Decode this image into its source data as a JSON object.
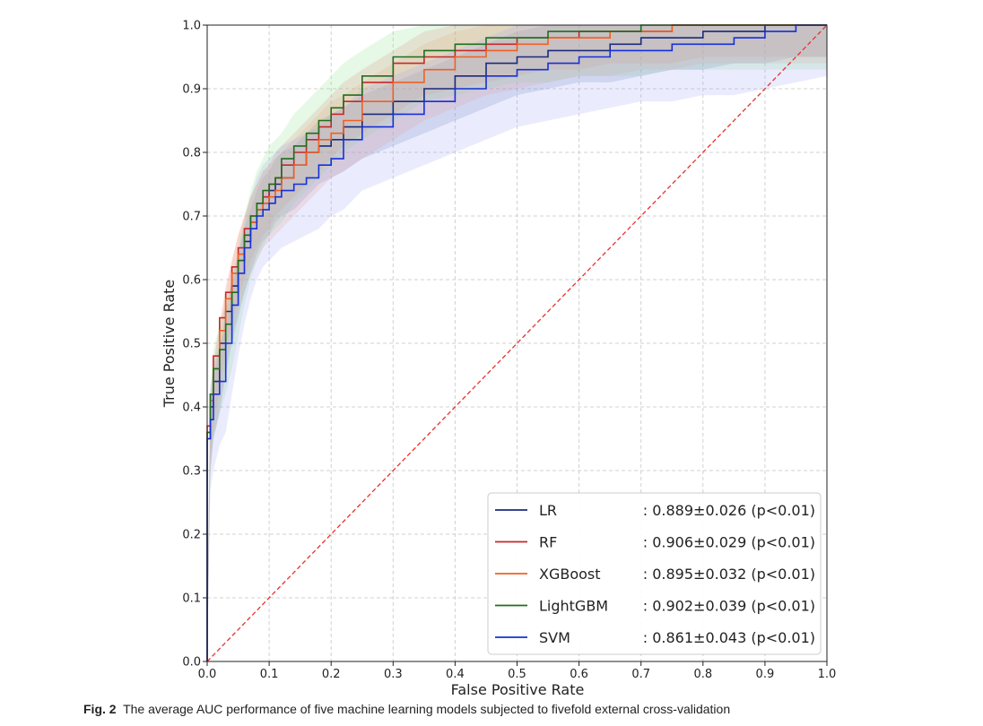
{
  "figure": {
    "caption_label": "Fig. 2",
    "caption_text": "The average AUC performance of five machine learning models subjected to fivefold external cross-validation"
  },
  "chart_data": {
    "type": "line",
    "title": "",
    "xlabel": "False Positive Rate",
    "ylabel": "True Positive Rate",
    "xlim": [
      0.0,
      1.0
    ],
    "ylim": [
      0.0,
      1.0
    ],
    "xticks": [
      "0.0",
      "0.1",
      "0.2",
      "0.3",
      "0.4",
      "0.5",
      "0.6",
      "0.7",
      "0.8",
      "0.9",
      "1.0"
    ],
    "yticks": [
      "0.0",
      "0.1",
      "0.2",
      "0.3",
      "0.4",
      "0.5",
      "0.6",
      "0.7",
      "0.8",
      "0.9",
      "1.0"
    ],
    "grid": true,
    "legend_position": "lower-right",
    "chance_line": {
      "color": "#e8302a",
      "style": "dashed",
      "x": [
        0,
        1
      ],
      "y": [
        0,
        1
      ]
    },
    "series": [
      {
        "name": "LR",
        "auc_label": ": 0.889±0.026 (p<0.01)",
        "color": "#1b2a7a",
        "band_color": "#6b7bb5",
        "band_halfwidth": 0.05,
        "x": [
          0,
          0.005,
          0.01,
          0.02,
          0.03,
          0.04,
          0.05,
          0.06,
          0.07,
          0.08,
          0.09,
          0.1,
          0.11,
          0.12,
          0.14,
          0.16,
          0.18,
          0.2,
          0.22,
          0.25,
          0.3,
          0.35,
          0.4,
          0.45,
          0.5,
          0.55,
          0.6,
          0.65,
          0.7,
          0.75,
          0.8,
          0.85,
          0.9,
          0.95,
          1.0
        ],
        "y": [
          0,
          0.35,
          0.4,
          0.44,
          0.5,
          0.55,
          0.59,
          0.63,
          0.66,
          0.69,
          0.71,
          0.72,
          0.74,
          0.75,
          0.76,
          0.78,
          0.8,
          0.81,
          0.82,
          0.84,
          0.86,
          0.88,
          0.9,
          0.92,
          0.94,
          0.95,
          0.96,
          0.96,
          0.97,
          0.98,
          0.98,
          0.99,
          0.99,
          1.0,
          1.0
        ]
      },
      {
        "name": "RF",
        "auc_label": ": 0.906±0.029 (p<0.01)",
        "color": "#c62828",
        "band_color": "#f08080",
        "band_halfwidth": 0.05,
        "x": [
          0,
          0.005,
          0.01,
          0.02,
          0.03,
          0.04,
          0.05,
          0.06,
          0.07,
          0.08,
          0.09,
          0.1,
          0.11,
          0.12,
          0.14,
          0.16,
          0.18,
          0.2,
          0.22,
          0.25,
          0.3,
          0.35,
          0.4,
          0.45,
          0.5,
          0.55,
          0.6,
          0.65,
          0.7,
          0.75,
          0.8,
          0.85,
          0.9,
          0.95,
          1.0
        ],
        "y": [
          0,
          0.37,
          0.42,
          0.48,
          0.54,
          0.58,
          0.62,
          0.65,
          0.68,
          0.7,
          0.72,
          0.73,
          0.75,
          0.76,
          0.78,
          0.8,
          0.82,
          0.84,
          0.86,
          0.88,
          0.91,
          0.94,
          0.95,
          0.96,
          0.97,
          0.98,
          0.98,
          0.99,
          0.99,
          0.99,
          1.0,
          1.0,
          1.0,
          1.0,
          1.0
        ]
      },
      {
        "name": "XGBoost",
        "auc_label": ": 0.895±0.032 (p<0.01)",
        "color": "#f06020",
        "band_color": "#f5a080",
        "band_halfwidth": 0.06,
        "x": [
          0,
          0.005,
          0.01,
          0.02,
          0.03,
          0.04,
          0.05,
          0.06,
          0.07,
          0.08,
          0.09,
          0.1,
          0.11,
          0.12,
          0.14,
          0.16,
          0.18,
          0.2,
          0.22,
          0.25,
          0.3,
          0.35,
          0.4,
          0.45,
          0.5,
          0.55,
          0.6,
          0.65,
          0.7,
          0.75,
          0.8,
          0.85,
          0.9,
          0.95,
          1.0
        ],
        "y": [
          0,
          0.36,
          0.41,
          0.46,
          0.52,
          0.57,
          0.61,
          0.64,
          0.67,
          0.69,
          0.71,
          0.72,
          0.73,
          0.74,
          0.76,
          0.78,
          0.8,
          0.82,
          0.83,
          0.85,
          0.88,
          0.91,
          0.93,
          0.95,
          0.96,
          0.97,
          0.98,
          0.98,
          0.99,
          0.99,
          1.0,
          1.0,
          1.0,
          1.0,
          1.0
        ]
      },
      {
        "name": "LightGBM",
        "auc_label": ": 0.902±0.039 (p<0.01)",
        "color": "#1e6e1e",
        "band_color": "#8ee08e",
        "band_halfwidth": 0.07,
        "x": [
          0,
          0.005,
          0.01,
          0.02,
          0.03,
          0.04,
          0.05,
          0.06,
          0.07,
          0.08,
          0.09,
          0.1,
          0.11,
          0.12,
          0.14,
          0.16,
          0.18,
          0.2,
          0.22,
          0.25,
          0.3,
          0.35,
          0.4,
          0.45,
          0.5,
          0.55,
          0.6,
          0.65,
          0.7,
          0.75,
          0.8,
          0.85,
          0.9,
          0.95,
          1.0
        ],
        "y": [
          0,
          0.36,
          0.42,
          0.46,
          0.49,
          0.53,
          0.58,
          0.63,
          0.67,
          0.7,
          0.72,
          0.74,
          0.75,
          0.76,
          0.79,
          0.81,
          0.83,
          0.85,
          0.87,
          0.89,
          0.92,
          0.95,
          0.96,
          0.97,
          0.98,
          0.98,
          0.99,
          0.99,
          0.99,
          1.0,
          1.0,
          1.0,
          1.0,
          1.0,
          1.0
        ]
      },
      {
        "name": "SVM",
        "auc_label": ": 0.861±0.043 (p<0.01)",
        "color": "#1530d8",
        "band_color": "#a0a8f5",
        "band_halfwidth": 0.08,
        "x": [
          0,
          0.005,
          0.01,
          0.02,
          0.03,
          0.04,
          0.05,
          0.06,
          0.07,
          0.08,
          0.09,
          0.1,
          0.11,
          0.12,
          0.14,
          0.16,
          0.18,
          0.2,
          0.22,
          0.25,
          0.3,
          0.35,
          0.4,
          0.45,
          0.5,
          0.55,
          0.6,
          0.65,
          0.7,
          0.75,
          0.8,
          0.85,
          0.9,
          0.95,
          1.0
        ],
        "y": [
          0,
          0.35,
          0.38,
          0.42,
          0.44,
          0.5,
          0.56,
          0.61,
          0.65,
          0.68,
          0.7,
          0.71,
          0.72,
          0.73,
          0.74,
          0.75,
          0.76,
          0.78,
          0.79,
          0.82,
          0.84,
          0.86,
          0.88,
          0.9,
          0.92,
          0.93,
          0.94,
          0.95,
          0.96,
          0.96,
          0.97,
          0.97,
          0.98,
          0.99,
          1.0
        ]
      }
    ]
  }
}
